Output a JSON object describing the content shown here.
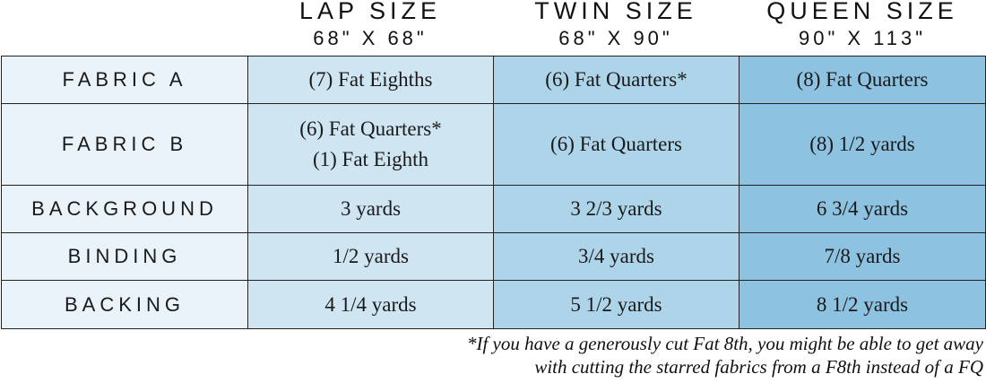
{
  "colors": {
    "label_bg": "#eaf3fa",
    "lap_bg": "#cfe5f2",
    "twin_bg": "#aed4ea",
    "queen_bg": "#8dc2e0",
    "border": "#222222"
  },
  "columns": [
    {
      "name": "LAP SIZE",
      "dims": "68\" X 68\""
    },
    {
      "name": "TWIN SIZE",
      "dims": "68\" X 90\""
    },
    {
      "name": "QUEEN SIZE",
      "dims": "90\" X 113\""
    }
  ],
  "rows": [
    {
      "label": "FABRIC A",
      "cells": [
        {
          "line1": "(7) Fat Eighths"
        },
        {
          "line1": "(6) Fat Quarters*"
        },
        {
          "line1": "(8) Fat Quarters"
        }
      ]
    },
    {
      "label": "FABRIC B",
      "cells": [
        {
          "line1": "(6) Fat Quarters*",
          "line2": "(1) Fat Eighth"
        },
        {
          "line1": "(6) Fat Quarters"
        },
        {
          "line1": "(8) 1/2 yards"
        }
      ]
    },
    {
      "label": "BACKGROUND",
      "cells": [
        {
          "line1": "3 yards"
        },
        {
          "line1": "3 2/3 yards"
        },
        {
          "line1": "6 3/4 yards"
        }
      ]
    },
    {
      "label": "BINDING",
      "cells": [
        {
          "line1": "1/2 yards"
        },
        {
          "line1": "3/4 yards"
        },
        {
          "line1": "7/8 yards"
        }
      ]
    },
    {
      "label": "BACKING",
      "cells": [
        {
          "line1": "4 1/4 yards"
        },
        {
          "line1": "5 1/2 yards"
        },
        {
          "line1": "8 1/2 yards"
        }
      ]
    }
  ],
  "footnote": {
    "line1": "*If you have a generously cut Fat 8th, you might be able to get away",
    "line2": "with cutting the starred fabrics from a F8th instead of a FQ"
  }
}
